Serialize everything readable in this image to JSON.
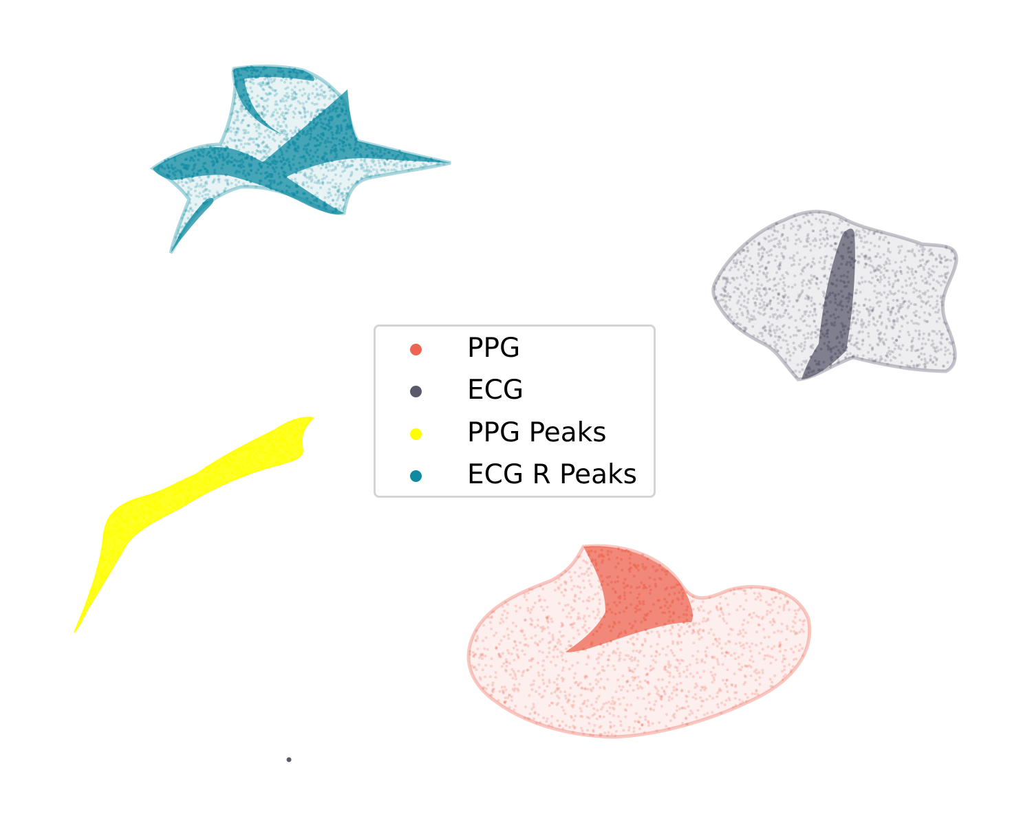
{
  "chart_data": {
    "type": "scatter",
    "title": "",
    "xlabel": "",
    "ylabel": "",
    "axes_visible": false,
    "grid": false,
    "legend_position": "center",
    "series": [
      {
        "name": "PPG",
        "color": "#ec6552"
      },
      {
        "name": "ECG",
        "color": "#5b5a6d"
      },
      {
        "name": "PPG Peaks",
        "color": "#ffff00"
      },
      {
        "name": "ECG R Peaks",
        "color": "#0f8ba1"
      }
    ]
  }
}
